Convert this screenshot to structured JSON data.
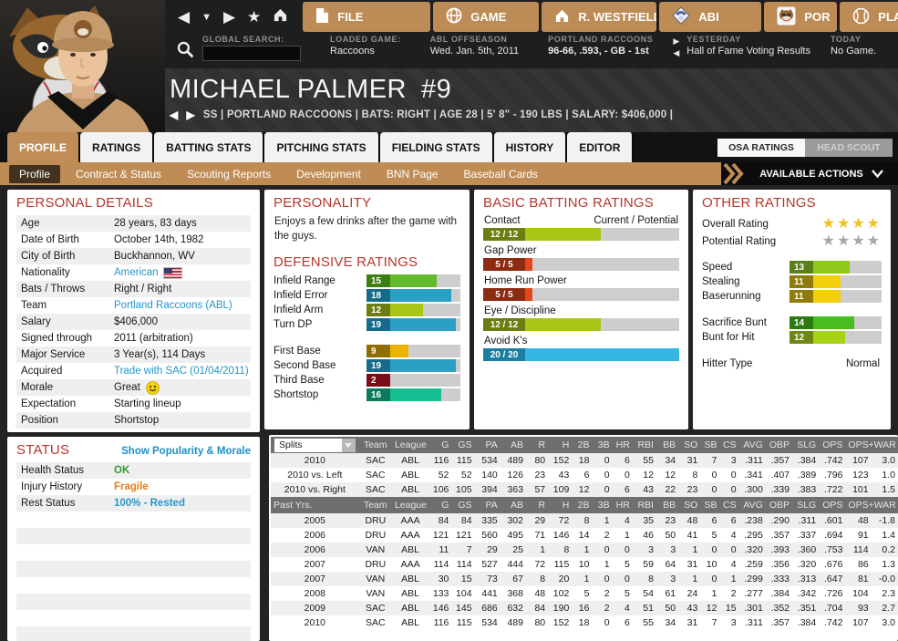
{
  "top_bar": {
    "menu_tabs": [
      {
        "label": "FILE",
        "icon": "file-icon"
      },
      {
        "label": "GAME",
        "icon": "globe-icon"
      },
      {
        "label": "R. WESTFIELD",
        "icon": "home-icon"
      },
      {
        "label": "ABI",
        "icon": "league-logo-icon"
      },
      {
        "label": "POR",
        "icon": "team-logo-icon"
      },
      {
        "label": "PLAY",
        "icon": "baseball-icon"
      }
    ],
    "global_search_label": "GLOBAL SEARCH:",
    "search_value": "",
    "loaded_game_label": "LOADED GAME:",
    "loaded_game_value": "Raccoons",
    "phase_label": "ABL OFFSEASON",
    "phase_value": "Wed. Jan. 5th, 2011",
    "team_label": "PORTLAND RACCOONS",
    "team_value": "96-66, .593, - GB - 1st",
    "yesterday_label": "YESTERDAY",
    "yesterday_value": "Hall of Fame Voting Results",
    "today_label": "TODAY",
    "today_value": "No Game."
  },
  "player_header": {
    "name": "MICHAEL PALMER",
    "number": "#9",
    "info": "SS | PORTLAND RACCOONS  |  BATS: RIGHT  |  AGE 28  |  5' 8\" - 190 LBS  |  SALARY: $406,000  |"
  },
  "tabs": {
    "items": [
      "PROFILE",
      "RATINGS",
      "BATTING STATS",
      "PITCHING STATS",
      "FIELDING STATS",
      "HISTORY",
      "EDITOR"
    ],
    "active_index": 0
  },
  "scout_toggle": {
    "osa": "OSA RATINGS",
    "head": "HEAD SCOUT"
  },
  "subbar": {
    "items": [
      "Profile",
      "Contract & Status",
      "Scouting Reports",
      "Development",
      "BNN Page",
      "Baseball Cards"
    ],
    "active_index": 0,
    "actions_label": "AVAILABLE ACTIONS"
  },
  "personal_details": {
    "title": "PERSONAL DETAILS",
    "rows": [
      {
        "label": "Age",
        "value": "28 years, 83 days"
      },
      {
        "label": "Date of Birth",
        "value": "October 14th, 1982"
      },
      {
        "label": "City of Birth",
        "value": "Buckhannon, WV"
      },
      {
        "label": "Nationality",
        "value": "American",
        "color": "link",
        "type": "flag"
      },
      {
        "label": "Bats / Throws",
        "value": "Right / Right"
      },
      {
        "label": "Team",
        "value": "Portland Raccoons (ABL)",
        "color": "link"
      },
      {
        "label": "Salary",
        "value": "$406,000"
      },
      {
        "label": "Signed through",
        "value": "2011 (arbitration)"
      },
      {
        "label": "Major Service",
        "value": "3 Year(s), 114 Days"
      },
      {
        "label": "Acquired",
        "value": "Trade with SAC (01/04/2011)",
        "color": "link"
      },
      {
        "label": "Morale",
        "value": "Great",
        "type": "smiley"
      },
      {
        "label": "Expectation",
        "value": "Starting lineup"
      },
      {
        "label": "Position",
        "value": "Shortstop"
      }
    ]
  },
  "status": {
    "title": "STATUS",
    "link": "Show Popularity & Morale",
    "rows": [
      {
        "label": "Health Status",
        "value": "OK",
        "color": "green"
      },
      {
        "label": "Injury History",
        "value": "Fragile",
        "color": "orange"
      },
      {
        "label": "Rest Status",
        "value": "100% - Rested",
        "color": "blue"
      }
    ]
  },
  "personality": {
    "title": "PERSONALITY",
    "text": "Enjoys a few drinks after the game with the guys."
  },
  "defensive": {
    "title": "DEFENSIVE RATINGS",
    "max": 20,
    "groups": [
      [
        {
          "label": "Infield Range",
          "value": 15,
          "fill": "#64b92c",
          "box": "#3e7d14"
        },
        {
          "label": "Infield Error",
          "value": 18,
          "fill": "#2b9fc4",
          "box": "#156c8a"
        },
        {
          "label": "Infield Arm",
          "value": 12,
          "fill": "#aac513",
          "box": "#6d7d10"
        },
        {
          "label": "Turn DP",
          "value": 19,
          "fill": "#2b9fc4",
          "box": "#156c8a"
        }
      ],
      [
        {
          "label": "First Base",
          "value": 9,
          "fill": "#eab400",
          "box": "#8f6e00"
        },
        {
          "label": "Second Base",
          "value": 19,
          "fill": "#2b9fc4",
          "box": "#156c8a"
        },
        {
          "label": "Third Base",
          "value": 2,
          "fill": "#c6121f",
          "box": "#7a0d15"
        },
        {
          "label": "Shortstop",
          "value": 16,
          "fill": "#16bf92",
          "box": "#0c7a5c"
        }
      ]
    ]
  },
  "batting": {
    "title": "BASIC BATTING RATINGS",
    "scale_header": "Current / Potential",
    "max": 20,
    "items": [
      {
        "label": "Contact",
        "current": 12,
        "potential": 12,
        "fill": "#aac513",
        "box": "#6d7d10"
      },
      {
        "label": "Gap Power",
        "current": 5,
        "potential": 5,
        "fill": "#e5461c",
        "box": "#8c2a12"
      },
      {
        "label": "Home Run Power",
        "current": 5,
        "potential": 5,
        "fill": "#e5461c",
        "box": "#8c2a12"
      },
      {
        "label": "Eye / Discipline",
        "current": 12,
        "potential": 12,
        "fill": "#aac513",
        "box": "#6d7d10"
      },
      {
        "label": "Avoid K's",
        "current": 20,
        "potential": 20,
        "fill": "#36b6e2",
        "box": "#1d7fa0"
      }
    ]
  },
  "other": {
    "title": "OTHER RATINGS",
    "overall_label": "Overall Rating",
    "potential_label": "Potential Rating",
    "overall_stars": 4,
    "overall_total": 4,
    "potential_stars": 0,
    "potential_total": 4,
    "star_gold": "#f0c41d",
    "star_gray": "#a6a6a6",
    "max": 20,
    "groups": [
      [
        {
          "label": "Speed",
          "value": 13,
          "fill": "#8ec81e",
          "box": "#59801a"
        },
        {
          "label": "Stealing",
          "value": 11,
          "fill": "#f2cf08",
          "box": "#8f7c0c"
        },
        {
          "label": "Baserunning",
          "value": 11,
          "fill": "#f2cf08",
          "box": "#8f7c0c"
        }
      ],
      [
        {
          "label": "Sacrifice Bunt",
          "value": 14,
          "fill": "#48bd1f",
          "box": "#2c7a12"
        },
        {
          "label": "Bunt for Hit",
          "value": 12,
          "fill": "#a6d216",
          "box": "#6d8712"
        }
      ]
    ],
    "hitter_label": "Hitter Type",
    "hitter_value": "Normal"
  },
  "splits_table": {
    "dropdown_value": "Splits",
    "past_label": "Past Yrs.",
    "columns": [
      "Team",
      "League",
      "G",
      "GS",
      "PA",
      "AB",
      "R",
      "H",
      "2B",
      "3B",
      "HR",
      "RBI",
      "BB",
      "SO",
      "SB",
      "CS",
      "AVG",
      "OBP",
      "SLG",
      "OPS",
      "OPS+",
      "WAR"
    ],
    "splits_rows": [
      [
        "2010",
        "SAC",
        "ABL",
        "116",
        "115",
        "534",
        "489",
        "80",
        "152",
        "18",
        "0",
        "6",
        "55",
        "34",
        "31",
        "7",
        "3",
        ".311",
        ".357",
        ".384",
        ".742",
        "107",
        "3.0"
      ],
      [
        "2010 vs. Left",
        "SAC",
        "ABL",
        "52",
        "52",
        "140",
        "126",
        "23",
        "43",
        "6",
        "0",
        "0",
        "12",
        "12",
        "8",
        "0",
        "0",
        ".341",
        ".407",
        ".389",
        ".796",
        "123",
        "1.0"
      ],
      [
        "2010 vs. Right",
        "SAC",
        "ABL",
        "106",
        "105",
        "394",
        "363",
        "57",
        "109",
        "12",
        "0",
        "6",
        "43",
        "22",
        "23",
        "0",
        "0",
        ".300",
        ".339",
        ".383",
        ".722",
        "101",
        "1.5"
      ]
    ],
    "past_rows": [
      [
        "2005",
        "DRU",
        "AAA",
        "84",
        "84",
        "335",
        "302",
        "29",
        "72",
        "8",
        "1",
        "4",
        "35",
        "23",
        "48",
        "6",
        "6",
        ".238",
        ".290",
        ".311",
        ".601",
        "48",
        "-1.8"
      ],
      [
        "2006",
        "DRU",
        "AAA",
        "121",
        "121",
        "560",
        "495",
        "71",
        "146",
        "14",
        "2",
        "1",
        "46",
        "50",
        "41",
        "5",
        "4",
        ".295",
        ".357",
        ".337",
        ".694",
        "91",
        "1.4"
      ],
      [
        "2006",
        "VAN",
        "ABL",
        "11",
        "7",
        "29",
        "25",
        "1",
        "8",
        "1",
        "0",
        "0",
        "3",
        "3",
        "1",
        "0",
        "0",
        ".320",
        ".393",
        ".360",
        ".753",
        "114",
        "0.2"
      ],
      [
        "2007",
        "DRU",
        "AAA",
        "114",
        "114",
        "527",
        "444",
        "72",
        "115",
        "10",
        "1",
        "5",
        "59",
        "64",
        "31",
        "10",
        "4",
        ".259",
        ".356",
        ".320",
        ".676",
        "86",
        "1.3"
      ],
      [
        "2007",
        "VAN",
        "ABL",
        "30",
        "15",
        "73",
        "67",
        "8",
        "20",
        "1",
        "0",
        "0",
        "8",
        "3",
        "1",
        "0",
        "1",
        ".299",
        ".333",
        ".313",
        ".647",
        "81",
        "-0.0"
      ],
      [
        "2008",
        "VAN",
        "ABL",
        "133",
        "104",
        "441",
        "368",
        "48",
        "102",
        "5",
        "2",
        "5",
        "54",
        "61",
        "24",
        "1",
        "2",
        ".277",
        ".384",
        ".342",
        ".726",
        "104",
        "2.3"
      ],
      [
        "2009",
        "SAC",
        "ABL",
        "146",
        "145",
        "686",
        "632",
        "84",
        "190",
        "16",
        "2",
        "4",
        "51",
        "50",
        "43",
        "12",
        "15",
        ".301",
        ".352",
        ".351",
        ".704",
        "93",
        "2.7"
      ],
      [
        "2010",
        "SAC",
        "ABL",
        "116",
        "115",
        "534",
        "489",
        "80",
        "152",
        "18",
        "0",
        "6",
        "55",
        "34",
        "31",
        "7",
        "3",
        ".311",
        ".357",
        ".384",
        ".742",
        "107",
        "3.0"
      ]
    ]
  }
}
